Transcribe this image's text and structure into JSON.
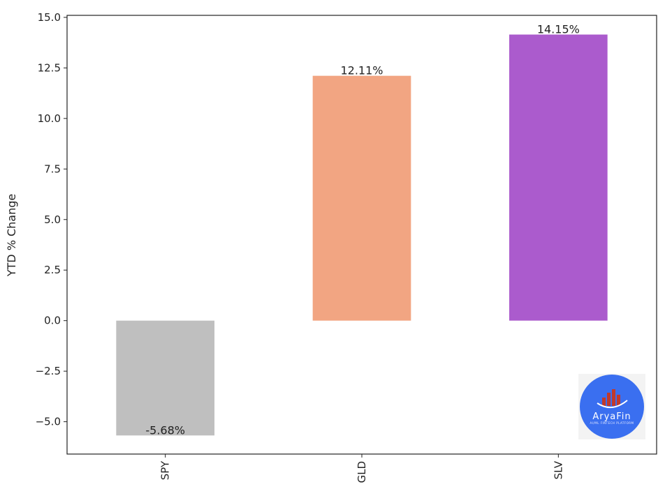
{
  "chart_data": {
    "type": "bar",
    "categories": [
      "SPY",
      "GLD",
      "SLV"
    ],
    "values": [
      -5.68,
      12.11,
      14.15
    ],
    "value_labels": [
      "-5.68%",
      "12.11%",
      "14.15%"
    ],
    "colors": [
      "#bfbfbf",
      "#f2a582",
      "#ab5bcd"
    ],
    "title": "",
    "xlabel": "",
    "ylabel": "YTD % Change",
    "ylim": [
      -6.6,
      15.1
    ],
    "yticks": [
      -5.0,
      -2.5,
      0.0,
      2.5,
      5.0,
      7.5,
      10.0,
      12.5,
      15.0
    ],
    "ytick_labels": [
      "−5.0",
      "−2.5",
      "0.0",
      "2.5",
      "5.0",
      "7.5",
      "10.0",
      "12.5",
      "15.0"
    ],
    "grid": false,
    "legend": "none"
  },
  "logo": {
    "name": "AryaFin",
    "tagline": "AI/ML FINTECH PLATFORM",
    "bg_color": "#3a6ff0"
  }
}
